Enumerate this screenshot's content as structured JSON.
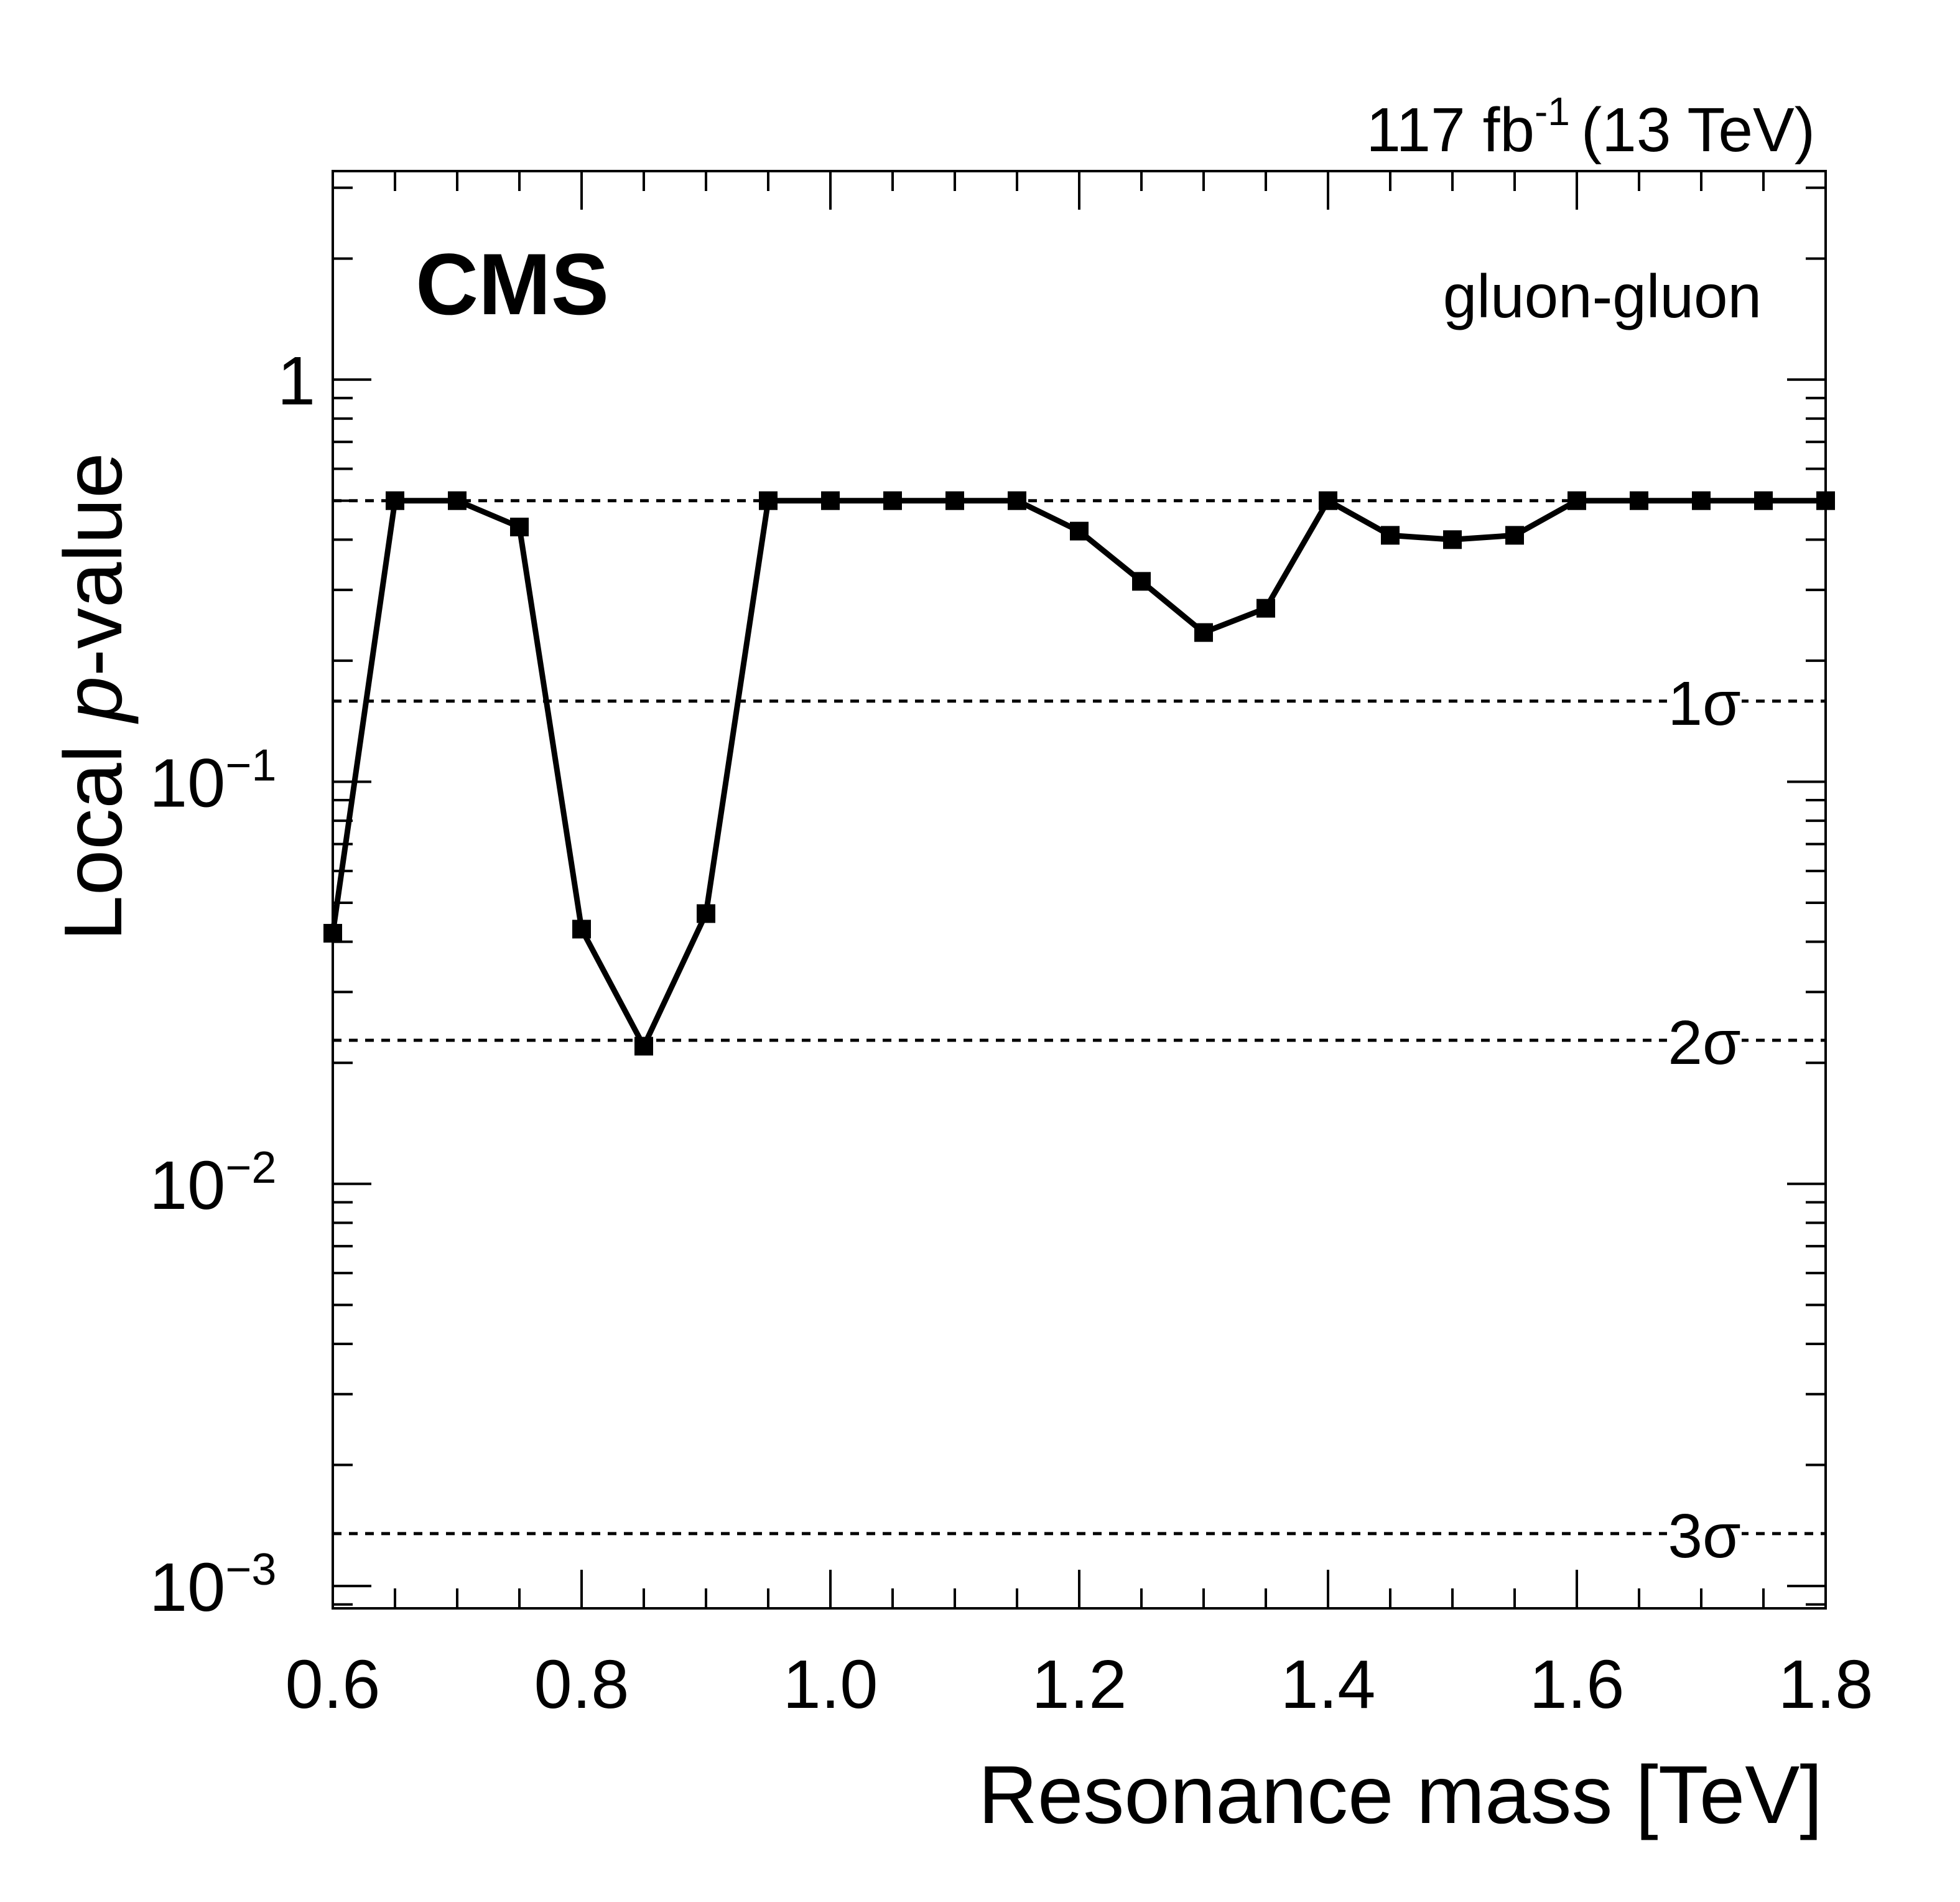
{
  "chart_data": {
    "type": "line",
    "experiment_label": "CMS",
    "lumi_label": "117 fb",
    "lumi_exponent": "-1",
    "energy_label": "(13 TeV)",
    "annotation": "gluon-gluon",
    "xlabel": "Resonance mass [TeV]",
    "ylabel_prefix": "Local ",
    "ylabel_italic": "p",
    "ylabel_suffix": "-value",
    "xlim": [
      0.6,
      1.8
    ],
    "ylim": [
      0.00088,
      3.3
    ],
    "yscale": "log",
    "x_ticks": [
      "0.6",
      "0.8",
      "1.0",
      "1.2",
      "1.4",
      "1.6",
      "1.8"
    ],
    "y_ticks": [
      {
        "base": "10",
        "exp": "−3",
        "value": 0.001
      },
      {
        "base": "10",
        "exp": "−2",
        "value": 0.01
      },
      {
        "base": "10",
        "exp": "−1",
        "value": 0.1
      },
      {
        "base": "1",
        "exp": "",
        "value": 1
      }
    ],
    "sigma_lines": [
      {
        "label": "1σ",
        "value": 0.1587
      },
      {
        "label": "2σ",
        "value": 0.02275
      },
      {
        "label": "3σ",
        "value": 0.00135
      },
      {
        "label": "",
        "value": 0.5
      }
    ],
    "series": [
      {
        "x": [
          0.6,
          0.65,
          0.7,
          0.75,
          0.8,
          0.85,
          0.9,
          0.95,
          1.0,
          1.05,
          1.1,
          1.15,
          1.2,
          1.25,
          1.3,
          1.35,
          1.4,
          1.45,
          1.5,
          1.55,
          1.6,
          1.65,
          1.7,
          1.75,
          1.8
        ],
        "y": [
          0.042,
          0.5,
          0.5,
          0.43,
          0.043,
          0.022,
          0.047,
          0.5,
          0.5,
          0.5,
          0.5,
          0.5,
          0.42,
          0.315,
          0.235,
          0.27,
          0.5,
          0.41,
          0.4,
          0.41,
          0.5,
          0.5,
          0.5,
          0.5,
          0.5
        ]
      }
    ],
    "grid": false
  }
}
